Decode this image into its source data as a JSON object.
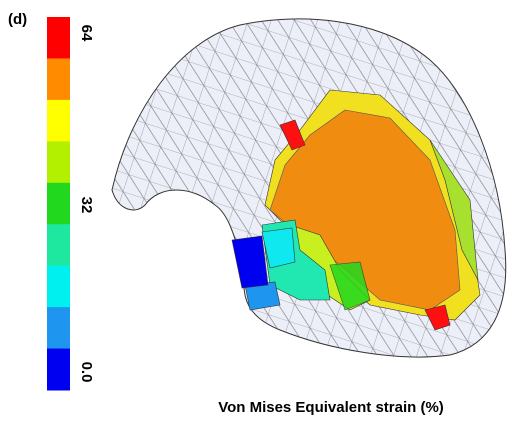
{
  "panel_label": "(d)",
  "colorbar": {
    "colors": [
      "#ff0000",
      "#ff8c00",
      "#ffff00",
      "#b2f000",
      "#22d81e",
      "#1ee8a0",
      "#00f0f0",
      "#1e96f0",
      "#0000f0"
    ],
    "labels": [
      "64",
      "32",
      "0.0"
    ]
  },
  "caption": "Von Mises Equivalent strain (%)"
}
